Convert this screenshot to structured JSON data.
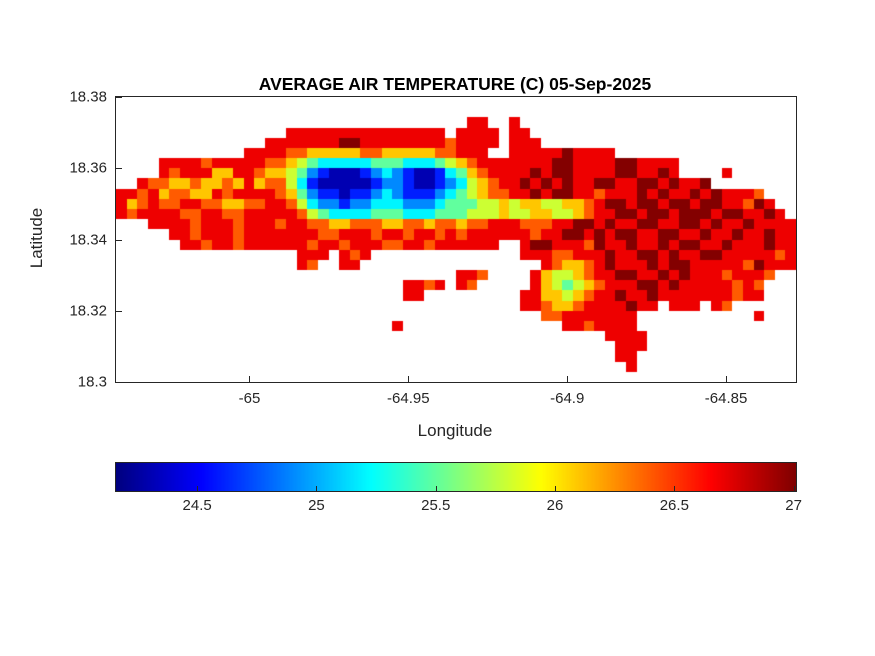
{
  "figure": {
    "background": "#ffffff",
    "text_color": "#262626"
  },
  "chart_data": {
    "type": "heatmap",
    "title": "AVERAGE AIR TEMPERATURE (C) 05-Sep-2025",
    "xlabel": "Longitude",
    "ylabel": "Latitude",
    "units": "C",
    "xlim": [
      -65.042,
      -64.828
    ],
    "ylim": [
      18.3,
      18.38
    ],
    "x_ticks": [
      -65,
      -64.95,
      -64.9,
      -64.85
    ],
    "x_tick_labels": [
      "-65",
      "-64.95",
      "-64.9",
      "-64.85"
    ],
    "y_ticks": [
      18.38,
      18.36,
      18.34,
      18.32,
      18.3
    ],
    "y_tick_labels": [
      "18.38",
      "18.36",
      "18.34",
      "18.32",
      "18.3"
    ],
    "colormap": "jet",
    "clim": [
      24.16,
      27.01
    ],
    "grid_lines": false,
    "colorbar": {
      "orientation": "horizontal",
      "ticks": [
        24.5,
        25,
        25.5,
        26,
        26.5,
        27
      ],
      "tick_labels": [
        "24.5",
        "25",
        "25.5",
        "26",
        "26.5",
        "27"
      ]
    },
    "grid": {
      "cols": 64,
      "rows": 28,
      "value_encoding": {
        ".": null,
        "0": 24.3,
        "1": 24.6,
        "2": 24.9,
        "3": 25.2,
        "4": 25.5,
        "5": 25.8,
        "6": 26.1,
        "7": 26.4,
        "8": 26.7,
        "9": 27.0
      },
      "rows_encoded": [
        "................................................................",
        "................................................................",
        ".................................88..8..........................",
        "................888888888888888.8888.88.........................",
        "..............8888888998888888878888.888........................",
        "............88887766666776666677888..8888898888.................",
        "....8888788888776543333344433345678888888998888998888...........",
        "....8788866887665421000123210013467888898998888998898....8......",
        "..877667667686775310000012210012356788989898899889989889........",
        "8878677668788887642110112321112345677889899887888989889898887...",
        "86787788776677887532212233322234445565665566789989989989988798..",
        "878888778877888887543333444333444555655665567889989989998998898.",
        "...8888788878887887766777667767767788877788998988998899898898888",
        ".....88788878888888778887887887878888887889989899889988988988988",
        "......887887888888788788877887888888..89988879889889899889888988",
        ".................888.878..............8887788898899898 8998888878",
        ".................87..88.................876678988898998 8888798888",
        "................................887....86556788998898988878887..",
        "...........................8878.87.....86545678889989888 88787...",
        "...........................88.........886656788988988888 88788...",
        "......................................887667888898 8.888.87......",
        "........................................778888888.......... .8..",
        "..........................8...............887888 8..............",
        "..............................................888 8.............",
        ".............................................. .888............. ",
        "...............................................88...............",
        "................................................8...............",
        "................................................................"
      ]
    }
  }
}
